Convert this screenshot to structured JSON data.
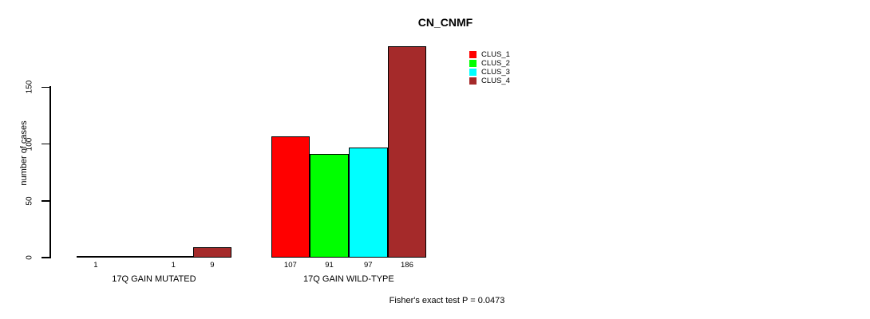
{
  "chart_data": {
    "type": "bar",
    "title": "CN_CNMF",
    "ylabel": "number of cases",
    "yticks": [
      0,
      50,
      100,
      150
    ],
    "ylim": [
      0,
      186
    ],
    "grid": false,
    "legend_position": "top-right",
    "legend": [
      {
        "name": "CLUS_1",
        "color": "#FF0000"
      },
      {
        "name": "CLUS_2",
        "color": "#00FF00"
      },
      {
        "name": "CLUS_3",
        "color": "#00FFFF"
      },
      {
        "name": "CLUS_4",
        "color": "#A52A2A"
      }
    ],
    "categories": [
      "17Q GAIN MUTATED",
      "17Q GAIN WILD-TYPE"
    ],
    "groups": [
      {
        "label": "17Q GAIN MUTATED",
        "values": [
          1,
          0,
          1,
          9
        ],
        "bar_labels": [
          "1",
          "",
          "1",
          "9"
        ]
      },
      {
        "label": "17Q GAIN WILD-TYPE",
        "values": [
          107,
          91,
          97,
          186
        ],
        "bar_labels": [
          "107",
          "91",
          "97",
          "186"
        ]
      }
    ],
    "footnote": "Fisher's exact test P = 0.0473"
  }
}
